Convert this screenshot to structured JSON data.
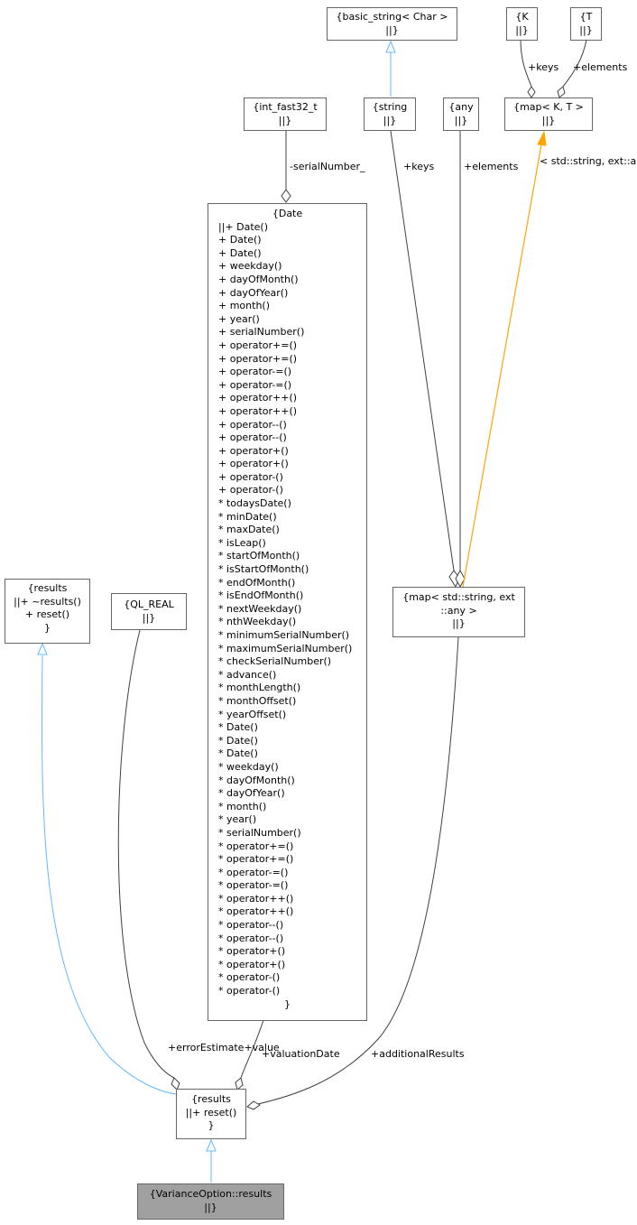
{
  "colors": {
    "edge_dark": "#404040",
    "edge_inherit": "#63b8ff",
    "edge_template": "#ffa500",
    "node_border": "#666666",
    "selected_fill": "#a0a0a0"
  },
  "nodes": {
    "basic_string": {
      "lines": [
        "{basic_string< Char >",
        "||}"
      ]
    },
    "k": {
      "lines": [
        "{K",
        "||}"
      ]
    },
    "t": {
      "lines": [
        "{T",
        "||}"
      ]
    },
    "int_fast32": {
      "lines": [
        "{int_fast32_t",
        "||}"
      ]
    },
    "string": {
      "lines": [
        "{string",
        "||}"
      ]
    },
    "any": {
      "lines": [
        "{any",
        "||}"
      ]
    },
    "map_kt": {
      "lines": [
        "{map< K, T >",
        "||}"
      ]
    },
    "date": {
      "lines": [
        "{Date",
        "||+ Date()",
        "+ Date()",
        "+ Date()",
        "+ weekday()",
        "+ dayOfMonth()",
        "+ dayOfYear()",
        "+ month()",
        "+ year()",
        "+ serialNumber()",
        "+ operator+=()",
        "+ operator+=()",
        "+ operator-=()",
        "+ operator-=()",
        "+ operator++()",
        "+ operator++()",
        "+ operator--()",
        "+ operator--()",
        "+ operator+()",
        "+ operator+()",
        "+ operator-()",
        "+ operator-()",
        "* todaysDate()",
        "* minDate()",
        "* maxDate()",
        "* isLeap()",
        "* startOfMonth()",
        "* isStartOfMonth()",
        "* endOfMonth()",
        "* isEndOfMonth()",
        "* nextWeekday()",
        "* nthWeekday()",
        "* minimumSerialNumber()",
        "* maximumSerialNumber()",
        "* checkSerialNumber()",
        "* advance()",
        "* monthLength()",
        "* monthOffset()",
        "* yearOffset()",
        "* Date()",
        "* Date()",
        "* Date()",
        "* weekday()",
        "* dayOfMonth()",
        "* dayOfYear()",
        "* month()",
        "* year()",
        "* serialNumber()",
        "* operator+=()",
        "* operator+=()",
        "* operator-=()",
        "* operator-=()",
        "* operator++()",
        "* operator++()",
        "* operator--()",
        "* operator--()",
        "* operator+()",
        "* operator+()",
        "* operator-()",
        "* operator-()",
        "}"
      ]
    },
    "results_base": {
      "lines": [
        "{results",
        "||+ ~results()",
        "+ reset()",
        "}"
      ]
    },
    "ql_real": {
      "lines": [
        "{QL_REAL",
        "||}"
      ]
    },
    "map_string_any": {
      "lines": [
        "{map< std::string, ext",
        "::any >",
        "||}"
      ]
    },
    "results": {
      "lines": [
        "{results",
        "||+ reset()",
        "}"
      ]
    },
    "variance_results": {
      "lines": [
        "{VarianceOption::results",
        "||}"
      ]
    }
  },
  "edge_labels": {
    "k_keys": "+keys",
    "t_elements": "+elements",
    "serial_number": "-serialNumber_",
    "string_keys": "+keys",
    "any_elements": "+elements",
    "template_args": [
      "< std::string, ext",
      "::any >"
    ],
    "error_value": [
      "+errorEstimate",
      "+value"
    ],
    "valuation_date": "+valuationDate",
    "additional_results": "+additionalResults"
  }
}
